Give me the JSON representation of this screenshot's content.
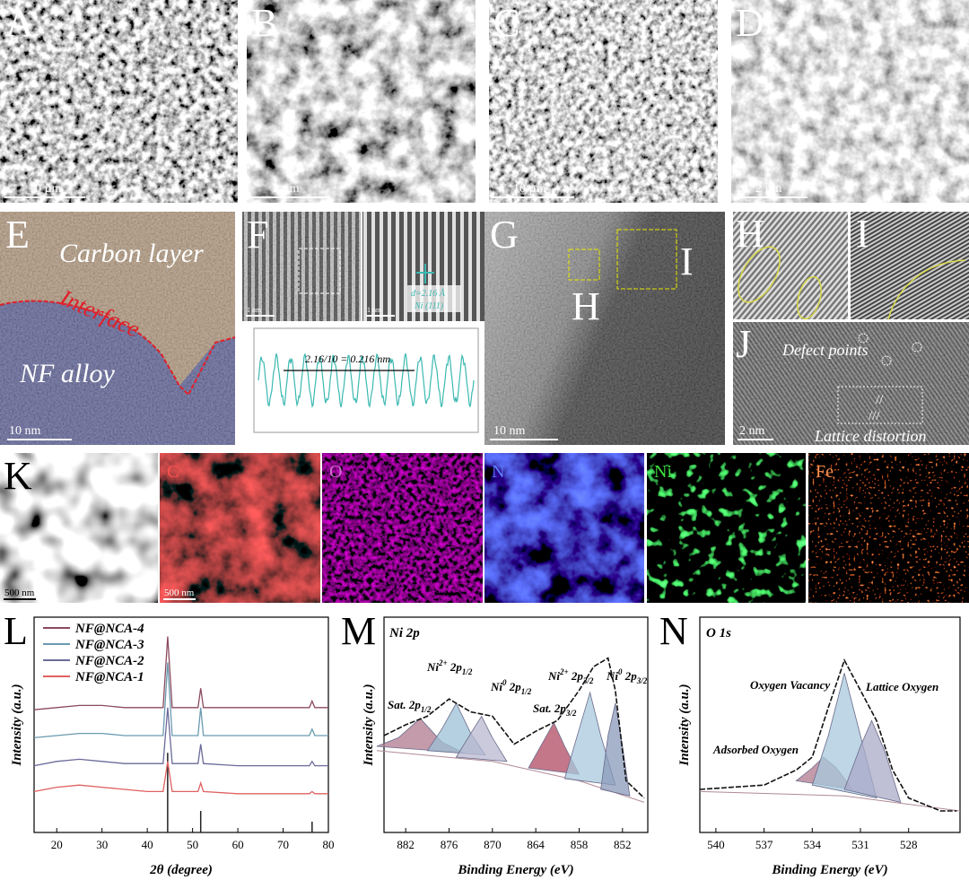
{
  "figure": {
    "sem": [
      {
        "label": "A",
        "scale": "10 µm"
      },
      {
        "label": "B",
        "scale": "2 µm"
      },
      {
        "label": "C",
        "scale": "10 µm"
      },
      {
        "label": "D",
        "scale": "2 µm"
      }
    ],
    "E": {
      "label": "E",
      "carbon": "Carbon layer",
      "interface": "Interface",
      "alloy": "NF alloy",
      "scale": "10 nm"
    },
    "F": {
      "label": "F",
      "scale_left": "1 nm",
      "scale_right": "1 nm",
      "d_spacing": "d=2.16 Å",
      "plane": "Ni (111)",
      "profile": "2.16/10 = 0.216 nm"
    },
    "G": {
      "label": "G",
      "scale": "10 nm",
      "box_h": "H",
      "box_i": "I"
    },
    "H": {
      "label": "H"
    },
    "I": {
      "label": "I"
    },
    "J": {
      "label": "J",
      "defects": "Defect points",
      "distortion": "Lattice distortion",
      "scale": "2 nm"
    },
    "K": {
      "label": "K",
      "scale": "500 nm"
    },
    "maps": [
      {
        "element": "C",
        "scale": "500 nm"
      },
      {
        "element": "O"
      },
      {
        "element": "N"
      },
      {
        "element": "Ni"
      },
      {
        "element": "Fe"
      }
    ]
  },
  "chart_data": [
    {
      "type": "line",
      "panel": "L",
      "xlabel": "2θ (degree)",
      "ylabel": "Intensity (a.u.)",
      "xlim": [
        15,
        80
      ],
      "xticks": [
        20,
        30,
        40,
        50,
        60,
        70,
        80
      ],
      "ylim": [
        0,
        100
      ],
      "x": [
        15,
        20,
        25,
        30,
        35,
        40,
        43.5,
        44.5,
        45.5,
        50,
        51.2,
        51.8,
        52.4,
        60,
        70,
        75.8,
        76.4,
        77,
        80
      ],
      "series": [
        {
          "name": "NF@NCA-4",
          "color": "#8b4a5e",
          "values": [
            57,
            58,
            59,
            59,
            58,
            58,
            58,
            91,
            58,
            58,
            58,
            67,
            58,
            58,
            58,
            58,
            61,
            58,
            58
          ]
        },
        {
          "name": "NF@NCA-3",
          "color": "#6a9ab0",
          "values": [
            44,
            45,
            46,
            46,
            45,
            45,
            45,
            79,
            45,
            45,
            45,
            58,
            45,
            45,
            45,
            45,
            48,
            45,
            45
          ]
        },
        {
          "name": "NF@NCA-2",
          "color": "#6b6a9a",
          "values": [
            31,
            33,
            34,
            33,
            32,
            32,
            32,
            58,
            32,
            32,
            32,
            41,
            32,
            31,
            31,
            31,
            33,
            31,
            31
          ]
        },
        {
          "name": "NF@NCA-1",
          "color": "#e06060",
          "values": [
            19,
            21,
            22,
            21,
            20,
            19,
            19,
            33,
            19,
            19,
            19,
            23,
            19,
            18,
            18,
            18,
            19,
            18,
            18
          ]
        }
      ],
      "reference": {
        "color": "#222222",
        "x": [
          44.5,
          51.8,
          76.4
        ],
        "values": [
          37,
          10,
          5
        ]
      }
    },
    {
      "type": "xps",
      "panel": "M",
      "title": "Ni 2p",
      "xlabel": "Binding Energy (eV)",
      "ylabel": "Intensity (a.u.)",
      "xlim": [
        885,
        848.5
      ],
      "xticks": [
        882,
        876,
        870,
        864,
        858,
        852
      ],
      "ylim": [
        0,
        100
      ],
      "background": {
        "color": "#b08a96",
        "x": [
          886,
          870,
          858,
          849
        ],
        "values": [
          38,
          33,
          24,
          14
        ]
      },
      "components": [
        {
          "label": {
            "base": "Sat. 2p",
            "sub": "1/2"
          },
          "color": "#b07a8e",
          "x": [
            886,
            883,
            880,
            877,
            874
          ],
          "values": [
            40,
            44,
            53,
            42,
            37
          ]
        },
        {
          "label": {
            "base": "Ni",
            "sup": "2+",
            "mid": " 2p",
            "sub": "1/2"
          },
          "color": "#9cc0d6",
          "x": [
            879,
            877,
            875,
            873,
            871
          ],
          "values": [
            38,
            48,
            60,
            46,
            36
          ]
        },
        {
          "label": {
            "base": "Ni",
            "sup": "0",
            "mid": " 2p",
            "sub": "1/2"
          },
          "color": "#b8b8d0",
          "x": [
            875,
            873,
            871.5,
            870,
            868
          ],
          "values": [
            35,
            46,
            54,
            44,
            33
          ]
        },
        {
          "label": {
            "base": "Sat. 2p",
            "sub": "3/2"
          },
          "color": "#b04a62",
          "x": [
            865,
            863,
            861.5,
            860,
            858
          ],
          "values": [
            30,
            42,
            51,
            40,
            27
          ]
        },
        {
          "label": {
            "base": "Ni",
            "sup": "2+",
            "mid": " 2p",
            "sub": "3/2"
          },
          "color": "#a8c8dc",
          "x": [
            860,
            858,
            856.5,
            855,
            853
          ],
          "values": [
            25,
            48,
            65,
            45,
            22
          ]
        },
        {
          "label": {
            "base": "Ni",
            "sup": "0",
            "mid": " 2p",
            "sub": "3/2"
          },
          "color": "#8a9ab8",
          "x": [
            855,
            854,
            853,
            852,
            851
          ],
          "values": [
            20,
            45,
            60,
            40,
            17
          ]
        }
      ],
      "fit": {
        "color": "#111111",
        "x": [
          885,
          882,
          879,
          876,
          873,
          870,
          867,
          864,
          861,
          858,
          856,
          854,
          853,
          851.5,
          849
        ],
        "values": [
          45,
          50,
          54,
          62,
          56,
          54,
          41,
          47,
          52,
          66,
          77,
          81,
          66,
          24,
          16
        ]
      }
    },
    {
      "type": "xps",
      "panel": "N",
      "title": "O 1s",
      "xlabel": "Binding Energy (eV)",
      "ylabel": "Intensity (a.u.)",
      "xlim": [
        541,
        524.8
      ],
      "xticks": [
        540,
        537,
        534,
        531,
        528
      ],
      "ylim": [
        0,
        100
      ],
      "background": {
        "color": "#b08a96",
        "x": [
          541,
          532,
          524.8
        ],
        "values": [
          19,
          17,
          10
        ]
      },
      "components": [
        {
          "label": {
            "base": "Adsorbed Oxygen"
          },
          "color": "#b07a8e",
          "x": [
            535,
            534,
            533.3,
            532.5,
            531.5
          ],
          "values": [
            24,
            30,
            35,
            30,
            20
          ]
        },
        {
          "label": {
            "base": "Oxygen Vacancy"
          },
          "color": "#a8c8dc",
          "x": [
            534,
            533,
            532,
            531,
            530
          ],
          "values": [
            22,
            45,
            74,
            45,
            16
          ]
        },
        {
          "label": {
            "base": "Lattice Oxygen"
          },
          "color": "#a9a9c8",
          "x": [
            532,
            531,
            530.3,
            529.5,
            528.5
          ],
          "values": [
            20,
            40,
            52,
            38,
            14
          ]
        }
      ],
      "fit": {
        "color": "#111111",
        "x": [
          541,
          537,
          535,
          534,
          533,
          532,
          531,
          530,
          529,
          528,
          526,
          525
        ],
        "values": [
          20,
          22,
          29,
          35,
          58,
          80,
          66,
          52,
          29,
          16,
          10,
          10
        ]
      }
    }
  ]
}
